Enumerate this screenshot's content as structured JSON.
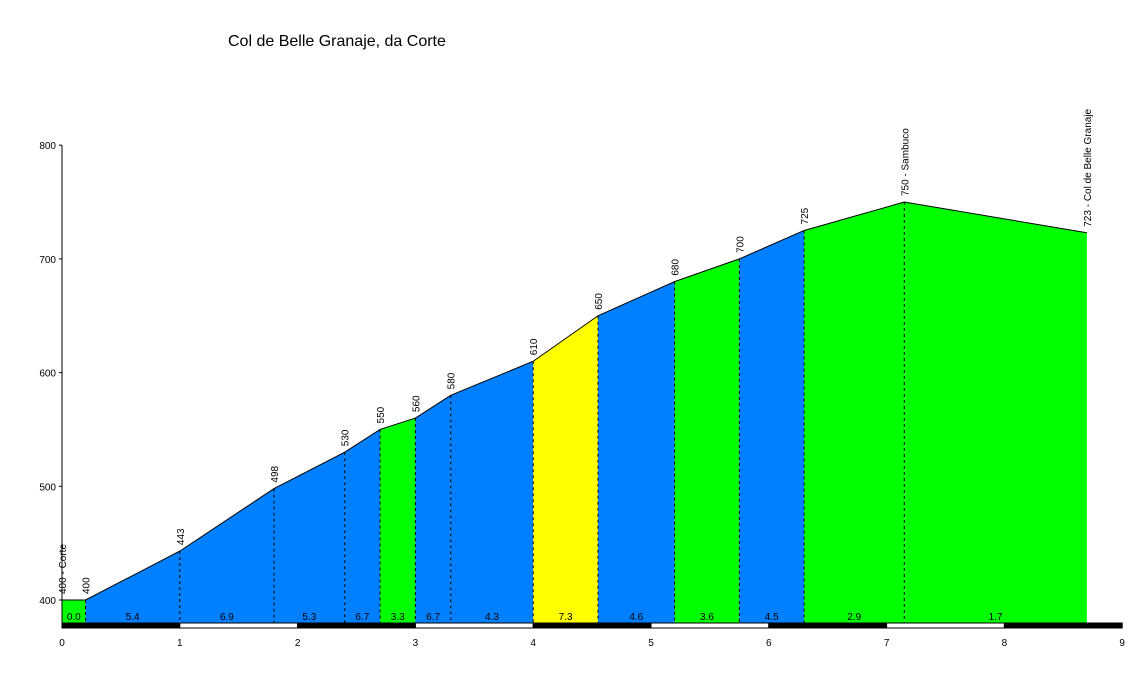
{
  "chart_data": {
    "type": "area",
    "title": "Col de Belle Granaje, da Corte",
    "xlabel": "",
    "ylabel": "",
    "xlim": [
      0,
      9
    ],
    "ylim": [
      380,
      800
    ],
    "x_ticks": [
      "0",
      "1",
      "2",
      "3",
      "4",
      "5",
      "6",
      "7",
      "8",
      "9"
    ],
    "y_ticks": [
      "400",
      "500",
      "600",
      "700",
      "800"
    ],
    "colors": {
      "blue": "#0080ff",
      "green": "#00ff00",
      "yellow": "#ffff00",
      "outline": "#000000"
    },
    "points": [
      {
        "x": 0.0,
        "y": 400,
        "label": "400 - Corte"
      },
      {
        "x": 0.2,
        "y": 400,
        "label": "400"
      },
      {
        "x": 1.0,
        "y": 443,
        "label": "443"
      },
      {
        "x": 1.8,
        "y": 498,
        "label": "498"
      },
      {
        "x": 2.4,
        "y": 530,
        "label": "530"
      },
      {
        "x": 2.7,
        "y": 550,
        "label": "550"
      },
      {
        "x": 3.0,
        "y": 560,
        "label": "560"
      },
      {
        "x": 3.3,
        "y": 580,
        "label": "580"
      },
      {
        "x": 4.0,
        "y": 610,
        "label": "610"
      },
      {
        "x": 4.55,
        "y": 650,
        "label": "650"
      },
      {
        "x": 5.2,
        "y": 680,
        "label": "680"
      },
      {
        "x": 5.75,
        "y": 700,
        "label": "700"
      },
      {
        "x": 6.3,
        "y": 725,
        "label": "725"
      },
      {
        "x": 7.15,
        "y": 750,
        "label": "750 - Sambuco"
      },
      {
        "x": 8.7,
        "y": 723,
        "label": "723 - Col de Belle Granaje"
      }
    ],
    "segments": [
      {
        "gradient": "0.0",
        "color": "green"
      },
      {
        "gradient": "5.4",
        "color": "blue"
      },
      {
        "gradient": "6.9",
        "color": "blue"
      },
      {
        "gradient": "5.3",
        "color": "blue"
      },
      {
        "gradient": "6.7",
        "color": "blue"
      },
      {
        "gradient": "3.3",
        "color": "green"
      },
      {
        "gradient": "6.7",
        "color": "blue"
      },
      {
        "gradient": "4.3",
        "color": "blue"
      },
      {
        "gradient": "7.3",
        "color": "yellow"
      },
      {
        "gradient": "4.6",
        "color": "blue"
      },
      {
        "gradient": "3.6",
        "color": "green"
      },
      {
        "gradient": "4.5",
        "color": "blue"
      },
      {
        "gradient": "2.9",
        "color": "green"
      },
      {
        "gradient": "1.7",
        "color": "green"
      }
    ]
  }
}
